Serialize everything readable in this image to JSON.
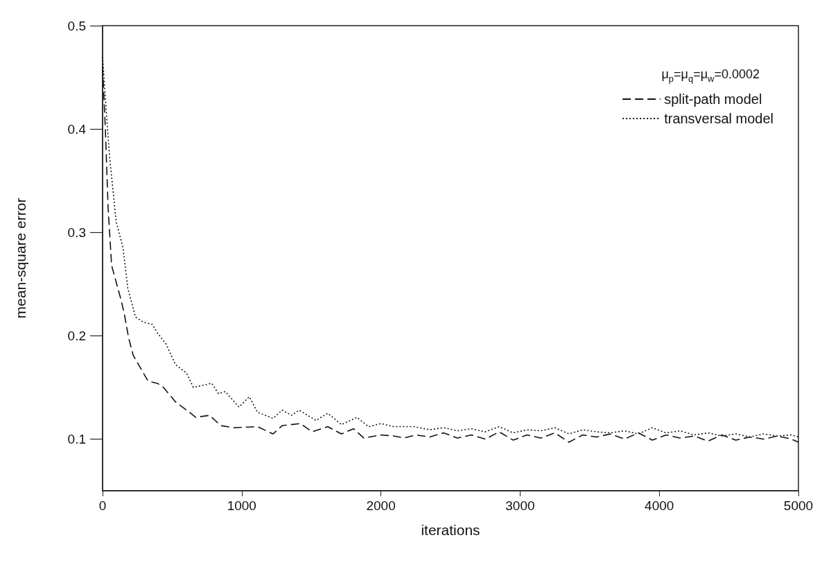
{
  "chart_data": {
    "type": "line",
    "xlabel": "iterations",
    "ylabel": "mean-square error",
    "annotations": [
      "μ$_{p}$=μ$_{q}$=μ$_{w}$=0.0002"
    ],
    "xlim": [
      0,
      5000
    ],
    "xticks": [
      0,
      1000,
      2000,
      3000,
      4000,
      5000
    ],
    "ylim": [
      0.05,
      0.5
    ],
    "yticks": [
      0.1,
      0.2,
      0.3,
      0.4,
      0.5
    ],
    "grid": false,
    "legend": "top right",
    "marker": "none",
    "series": [
      {
        "name": "split-path model",
        "color": "#111111",
        "line_style": "dashed",
        "x": [
          0,
          20,
          40,
          65,
          130,
          155,
          187,
          220,
          280,
          327,
          392,
          431,
          524,
          604,
          670,
          768,
          850,
          946,
          1113,
          1225,
          1290,
          1422,
          1505,
          1618,
          1716,
          1804,
          1877,
          2000,
          2093,
          2167,
          2250,
          2350,
          2450,
          2550,
          2650,
          2750,
          2850,
          2950,
          3050,
          3150,
          3250,
          3350,
          3450,
          3550,
          3650,
          3750,
          3850,
          3950,
          4050,
          4150,
          4250,
          4350,
          4450,
          4550,
          4650,
          4750,
          4850,
          4950,
          5000
        ],
        "values": [
          0.46,
          0.4,
          0.323,
          0.268,
          0.236,
          0.222,
          0.198,
          0.181,
          0.167,
          0.156,
          0.154,
          0.151,
          0.136,
          0.128,
          0.121,
          0.123,
          0.113,
          0.111,
          0.112,
          0.105,
          0.113,
          0.115,
          0.107,
          0.112,
          0.105,
          0.11,
          0.101,
          0.104,
          0.103,
          0.101,
          0.104,
          0.102,
          0.106,
          0.101,
          0.104,
          0.1,
          0.107,
          0.099,
          0.104,
          0.101,
          0.106,
          0.097,
          0.104,
          0.102,
          0.105,
          0.1,
          0.106,
          0.099,
          0.104,
          0.101,
          0.103,
          0.098,
          0.104,
          0.099,
          0.102,
          0.1,
          0.103,
          0.1,
          0.097
        ]
      },
      {
        "name": "transversal model",
        "color": "#111111",
        "line_style": "dotted",
        "x": [
          0,
          20,
          49,
          98,
          147,
          181,
          237,
          294,
          358,
          392,
          456,
          524,
          603,
          652,
          784,
          833,
          882,
          980,
          1054,
          1113,
          1225,
          1290,
          1357,
          1412,
          1534,
          1618,
          1716,
          1828,
          1912,
          2000,
          2093,
          2240,
          2350,
          2450,
          2550,
          2650,
          2750,
          2850,
          2950,
          3050,
          3150,
          3250,
          3350,
          3450,
          3550,
          3650,
          3750,
          3850,
          3950,
          4050,
          4150,
          4250,
          4350,
          4450,
          4550,
          4650,
          4750,
          4850,
          4950,
          5000
        ],
        "values": [
          0.47,
          0.43,
          0.375,
          0.31,
          0.285,
          0.246,
          0.218,
          0.213,
          0.211,
          0.203,
          0.192,
          0.172,
          0.164,
          0.15,
          0.154,
          0.144,
          0.146,
          0.131,
          0.141,
          0.126,
          0.12,
          0.128,
          0.123,
          0.128,
          0.118,
          0.125,
          0.114,
          0.121,
          0.112,
          0.115,
          0.112,
          0.112,
          0.109,
          0.111,
          0.108,
          0.11,
          0.107,
          0.112,
          0.106,
          0.109,
          0.108,
          0.111,
          0.105,
          0.109,
          0.107,
          0.106,
          0.108,
          0.105,
          0.111,
          0.106,
          0.108,
          0.104,
          0.106,
          0.103,
          0.105,
          0.102,
          0.105,
          0.103,
          0.104,
          0.102
        ]
      }
    ]
  }
}
